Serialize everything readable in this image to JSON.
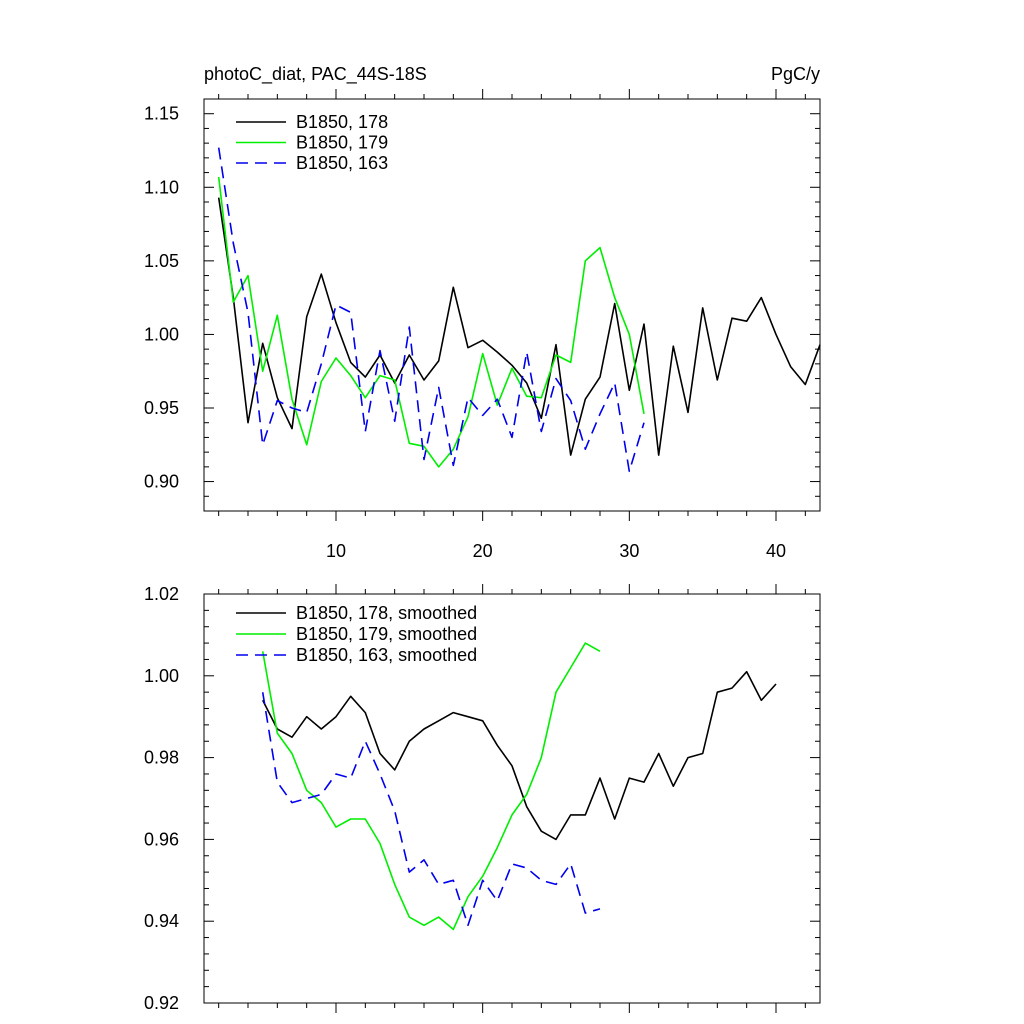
{
  "chart_data": [
    {
      "type": "line",
      "title": "photoC_diat, PAC_44S-18S",
      "units": "PgC/y",
      "xlim": [
        1,
        43
      ],
      "ylim": [
        0.88,
        1.16
      ],
      "xticks": [
        10,
        20,
        30,
        40
      ],
      "xtick_labels": [
        "10",
        "20",
        "30",
        "40"
      ],
      "yticks": [
        0.9,
        0.95,
        1.0,
        1.05,
        1.1,
        1.15
      ],
      "ytick_labels": [
        "0.90",
        "0.95",
        "1.00",
        "1.05",
        "1.10",
        "1.15"
      ],
      "legend_position": "top-left",
      "series": [
        {
          "name": "B1850, 178",
          "color": "#000000",
          "dash": "solid",
          "x_start": 2,
          "values": [
            1.093,
            1.025,
            0.94,
            0.994,
            0.957,
            0.936,
            1.012,
            1.041,
            1.008,
            0.981,
            0.971,
            0.986,
            0.967,
            0.986,
            0.969,
            0.982,
            1.032,
            0.991,
            0.996,
            0.988,
            0.979,
            0.967,
            0.943,
            0.993,
            0.918,
            0.956,
            0.971,
            1.021,
            0.962,
            1.007,
            0.918,
            0.992,
            0.947,
            1.018,
            0.969,
            1.011,
            1.009,
            1.025,
            1.0,
            0.978,
            0.966,
            0.993
          ]
        },
        {
          "name": "B1850, 179",
          "color": "#00ee00",
          "dash": "solid",
          "x_start": 2,
          "values": [
            1.107,
            1.022,
            1.04,
            0.975,
            1.013,
            0.956,
            0.925,
            0.968,
            0.984,
            0.972,
            0.957,
            0.972,
            0.969,
            0.926,
            0.924,
            0.91,
            0.922,
            0.944,
            0.987,
            0.952,
            0.977,
            0.958,
            0.957,
            0.986,
            0.981,
            1.05,
            1.059,
            1.025,
            1.0,
            0.946
          ]
        },
        {
          "name": "B1850, 163",
          "color": "#0000ee",
          "dash": "dashed",
          "x_start": 2,
          "values": [
            1.127,
            1.062,
            1.015,
            0.925,
            0.955,
            0.95,
            0.947,
            0.98,
            1.02,
            1.015,
            0.934,
            0.989,
            0.941,
            1.005,
            0.915,
            0.964,
            0.911,
            0.957,
            0.945,
            0.956,
            0.93,
            0.988,
            0.934,
            0.97,
            0.955,
            0.922,
            0.946,
            0.967,
            0.907,
            0.94
          ]
        }
      ]
    },
    {
      "type": "line",
      "xlim": [
        1,
        43
      ],
      "ylim": [
        0.92,
        1.02
      ],
      "xticks": [
        10,
        20,
        30,
        40
      ],
      "xtick_labels": [],
      "yticks": [
        0.92,
        0.94,
        0.96,
        0.98,
        1.0,
        1.02
      ],
      "ytick_labels": [
        "0.92",
        "0.94",
        "0.96",
        "0.98",
        "1.00",
        "1.02"
      ],
      "legend_position": "top-left",
      "series": [
        {
          "name": "B1850, 178, smoothed",
          "color": "#000000",
          "dash": "solid",
          "x_start": 5,
          "values": [
            0.994,
            0.987,
            0.985,
            0.99,
            0.987,
            0.99,
            0.995,
            0.991,
            0.981,
            0.977,
            0.984,
            0.987,
            0.989,
            0.991,
            0.99,
            0.989,
            0.983,
            0.978,
            0.968,
            0.962,
            0.96,
            0.966,
            0.966,
            0.975,
            0.965,
            0.975,
            0.974,
            0.981,
            0.973,
            0.98,
            0.981,
            0.996,
            0.997,
            1.001,
            0.994,
            0.998
          ]
        },
        {
          "name": "B1850, 179, smoothed",
          "color": "#00ee00",
          "dash": "solid",
          "x_start": 5,
          "values": [
            1.006,
            0.986,
            0.981,
            0.972,
            0.969,
            0.963,
            0.965,
            0.965,
            0.959,
            0.949,
            0.941,
            0.939,
            0.941,
            0.938,
            0.946,
            0.951,
            0.958,
            0.966,
            0.971,
            0.98,
            0.996,
            1.002,
            1.008,
            1.006
          ]
        },
        {
          "name": "B1850, 163, smoothed",
          "color": "#0000ee",
          "dash": "dashed",
          "x_start": 5,
          "values": [
            0.996,
            0.974,
            0.969,
            0.97,
            0.971,
            0.976,
            0.975,
            0.984,
            0.976,
            0.967,
            0.952,
            0.955,
            0.949,
            0.95,
            0.939,
            0.95,
            0.945,
            0.954,
            0.953,
            0.95,
            0.949,
            0.954,
            0.942,
            0.943
          ]
        }
      ]
    }
  ]
}
